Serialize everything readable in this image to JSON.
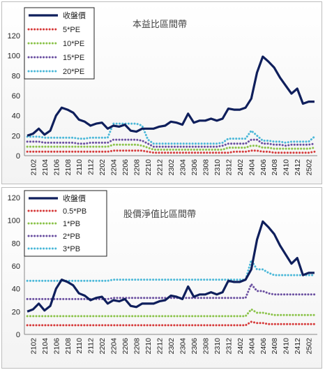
{
  "charts_meta": {
    "x_ticks": [
      "2102",
      "2104",
      "2106",
      "2108",
      "2110",
      "2112",
      "2202",
      "2204",
      "2206",
      "2208",
      "2210",
      "2212",
      "2302",
      "2304",
      "2306",
      "2308",
      "2310",
      "2312",
      "2402",
      "2404",
      "2406",
      "2408",
      "2410",
      "2412",
      "2502"
    ]
  },
  "chart_data": [
    {
      "type": "line",
      "title": "本益比區間帶",
      "ylim": [
        0,
        120
      ],
      "y_ticks": [
        0,
        20,
        40,
        60,
        80,
        100,
        120
      ],
      "legend_position": "top-left",
      "x": [
        "2101",
        "2102",
        "2103",
        "2104",
        "2105",
        "2106",
        "2107",
        "2108",
        "2109",
        "2110",
        "2111",
        "2112",
        "2201",
        "2202",
        "2203",
        "2204",
        "2205",
        "2206",
        "2207",
        "2208",
        "2209",
        "2210",
        "2211",
        "2212",
        "2301",
        "2302",
        "2303",
        "2304",
        "2305",
        "2306",
        "2307",
        "2308",
        "2309",
        "2310",
        "2311",
        "2312",
        "2401",
        "2402",
        "2403",
        "2404",
        "2405",
        "2406",
        "2407",
        "2408",
        "2409",
        "2410",
        "2411",
        "2412",
        "2501",
        "2502",
        "2503"
      ],
      "series": [
        {
          "name": "收盤價",
          "color": "#0f1f5c",
          "style": "solid",
          "values": [
            20,
            22,
            27,
            21,
            25,
            40,
            48,
            46,
            43,
            36,
            34,
            30,
            32,
            33,
            27,
            30,
            29,
            31,
            25,
            24,
            27,
            27,
            27,
            29,
            30,
            34,
            33,
            31,
            42,
            33,
            35,
            35,
            37,
            35,
            37,
            47,
            46,
            46,
            48,
            57,
            83,
            99,
            94,
            88,
            78,
            70,
            62,
            67,
            52,
            54,
            54
          ]
        },
        {
          "name": "5*PE",
          "color": "#d63a3a",
          "style": "dotted",
          "values": [
            4,
            4,
            4,
            4,
            4,
            4,
            4,
            4,
            4,
            4,
            4,
            4,
            4,
            4,
            4,
            5,
            5,
            5,
            5,
            5,
            5,
            4,
            3,
            3,
            3,
            3,
            3,
            3,
            3,
            3,
            3,
            3,
            3,
            3,
            3,
            3,
            4,
            4,
            4,
            5,
            5,
            4,
            4,
            3,
            3,
            3,
            3,
            3,
            3,
            3,
            4
          ]
        },
        {
          "name": "10*PE",
          "color": "#8bc34a",
          "style": "dotted",
          "values": [
            9,
            9,
            9,
            9,
            9,
            9,
            9,
            9,
            9,
            9,
            9,
            9,
            9,
            9,
            9,
            11,
            11,
            11,
            11,
            11,
            10,
            8,
            6,
            6,
            6,
            6,
            6,
            6,
            6,
            6,
            6,
            6,
            6,
            6,
            6,
            8,
            8,
            8,
            8,
            10,
            10,
            8,
            8,
            7,
            7,
            7,
            7,
            7,
            7,
            7,
            8
          ]
        },
        {
          "name": "15*PE",
          "color": "#6a4fa0",
          "style": "dotted",
          "values": [
            14,
            14,
            14,
            13,
            13,
            13,
            13,
            13,
            13,
            12,
            12,
            13,
            13,
            13,
            13,
            16,
            16,
            16,
            16,
            16,
            15,
            12,
            9,
            9,
            9,
            9,
            9,
            9,
            9,
            9,
            9,
            9,
            9,
            9,
            10,
            12,
            12,
            12,
            12,
            16,
            16,
            12,
            12,
            11,
            11,
            10,
            11,
            11,
            11,
            11,
            12
          ]
        },
        {
          "name": "20*PE",
          "color": "#4bb8d8",
          "style": "dotted",
          "values": [
            19,
            19,
            19,
            18,
            18,
            18,
            18,
            18,
            18,
            17,
            17,
            18,
            18,
            18,
            18,
            32,
            32,
            32,
            32,
            32,
            30,
            16,
            12,
            12,
            12,
            12,
            12,
            12,
            12,
            12,
            12,
            12,
            12,
            12,
            13,
            17,
            17,
            17,
            17,
            25,
            20,
            15,
            15,
            14,
            14,
            13,
            14,
            14,
            14,
            14,
            19
          ]
        }
      ]
    },
    {
      "type": "line",
      "title": "股價淨值比區間帶",
      "ylim": [
        0,
        120
      ],
      "y_ticks": [
        0,
        20,
        40,
        60,
        80,
        100,
        120
      ],
      "legend_position": "top-left",
      "x": [
        "2101",
        "2102",
        "2103",
        "2104",
        "2105",
        "2106",
        "2107",
        "2108",
        "2109",
        "2110",
        "2111",
        "2112",
        "2201",
        "2202",
        "2203",
        "2204",
        "2205",
        "2206",
        "2207",
        "2208",
        "2209",
        "2210",
        "2211",
        "2212",
        "2301",
        "2302",
        "2303",
        "2304",
        "2305",
        "2306",
        "2307",
        "2308",
        "2309",
        "2310",
        "2311",
        "2312",
        "2401",
        "2402",
        "2403",
        "2404",
        "2405",
        "2406",
        "2407",
        "2408",
        "2409",
        "2410",
        "2411",
        "2412",
        "2501",
        "2502",
        "2503"
      ],
      "series": [
        {
          "name": "收盤價",
          "color": "#0f1f5c",
          "style": "solid",
          "values": [
            20,
            22,
            27,
            21,
            25,
            40,
            48,
            46,
            43,
            36,
            34,
            30,
            32,
            33,
            27,
            30,
            29,
            31,
            25,
            24,
            27,
            27,
            27,
            29,
            30,
            34,
            33,
            31,
            42,
            33,
            35,
            35,
            37,
            35,
            37,
            47,
            46,
            46,
            48,
            57,
            83,
            99,
            94,
            88,
            78,
            70,
            62,
            67,
            52,
            54,
            54
          ]
        },
        {
          "name": "0.5*PB",
          "color": "#d63a3a",
          "style": "dotted",
          "values": [
            8,
            8,
            8,
            8,
            8,
            8,
            8,
            8,
            8,
            8,
            8,
            8,
            8,
            8,
            8,
            8,
            8,
            8,
            8,
            8,
            8,
            8,
            8,
            8,
            8,
            8,
            8,
            8,
            8,
            8,
            8,
            8,
            8,
            8,
            8,
            8,
            8,
            8,
            8,
            11,
            10,
            10,
            9,
            9,
            9,
            9,
            9,
            9,
            9,
            9,
            9
          ]
        },
        {
          "name": "1*PB",
          "color": "#8bc34a",
          "style": "dotted",
          "values": [
            16,
            16,
            16,
            16,
            16,
            16,
            16,
            16,
            16,
            16,
            16,
            16,
            16,
            16,
            16,
            16,
            16,
            16,
            16,
            16,
            16,
            16,
            16,
            16,
            16,
            16,
            16,
            16,
            16,
            16,
            16,
            16,
            16,
            16,
            16,
            16,
            16,
            16,
            16,
            22,
            19,
            19,
            18,
            17,
            17,
            17,
            17,
            17,
            17,
            17,
            17
          ]
        },
        {
          "name": "2*PB",
          "color": "#6a4fa0",
          "style": "dotted",
          "values": [
            31,
            31,
            31,
            31,
            31,
            31,
            31,
            31,
            31,
            31,
            31,
            31,
            31,
            31,
            31,
            32,
            32,
            32,
            32,
            32,
            32,
            32,
            32,
            32,
            32,
            32,
            32,
            32,
            32,
            32,
            32,
            32,
            32,
            32,
            32,
            32,
            32,
            32,
            32,
            44,
            38,
            38,
            36,
            35,
            35,
            35,
            35,
            35,
            35,
            35,
            35
          ]
        },
        {
          "name": "3*PB",
          "color": "#4bb8d8",
          "style": "dotted",
          "values": [
            47,
            47,
            47,
            47,
            47,
            47,
            47,
            47,
            47,
            47,
            47,
            47,
            47,
            47,
            47,
            48,
            48,
            48,
            48,
            48,
            48,
            48,
            48,
            48,
            48,
            48,
            48,
            48,
            48,
            48,
            48,
            48,
            48,
            48,
            48,
            48,
            48,
            48,
            48,
            65,
            57,
            57,
            54,
            52,
            52,
            52,
            52,
            52,
            52,
            52,
            52
          ]
        }
      ]
    }
  ]
}
